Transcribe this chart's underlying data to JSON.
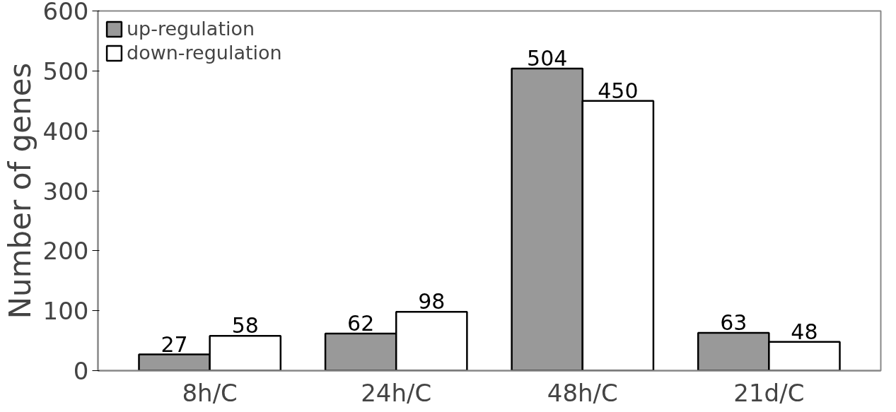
{
  "chart_data": {
    "type": "bar",
    "ylabel": "Number of genes",
    "categories": [
      "8h/C",
      "24h/C",
      "48h/C",
      "21d/C"
    ],
    "series": [
      {
        "name": "up-regulation",
        "color": "#999999",
        "values": [
          27,
          62,
          504,
          63
        ]
      },
      {
        "name": "down-regulation",
        "color": "#ffffff",
        "values": [
          58,
          98,
          450,
          48
        ]
      }
    ],
    "ylim": [
      0,
      600
    ],
    "yticks": [
      0,
      100,
      200,
      300,
      400,
      500,
      600
    ],
    "data_labels": true,
    "legend": "top left",
    "grid": false
  }
}
